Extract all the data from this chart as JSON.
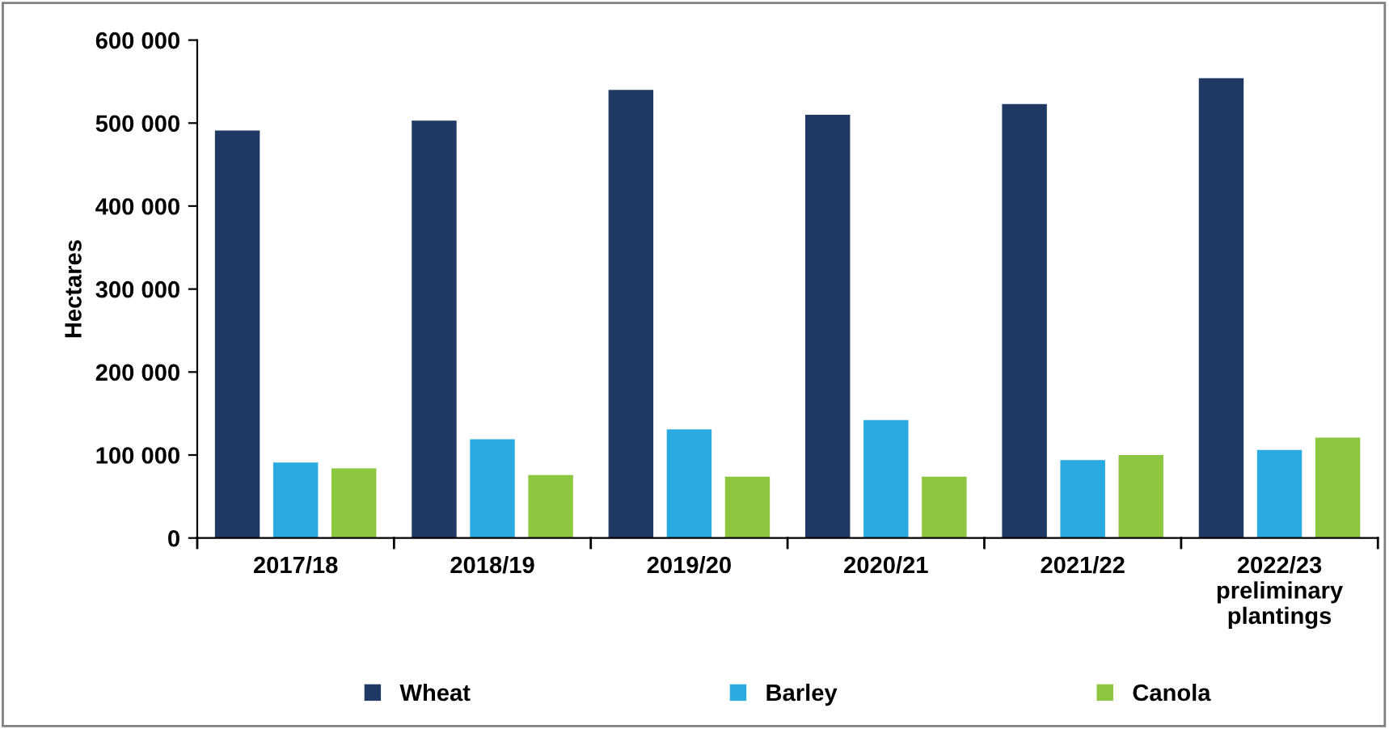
{
  "chart_data": {
    "type": "bar",
    "ylabel": "Hectares",
    "categories": [
      "2017/18",
      "2018/19",
      "2019/20",
      "2020/21",
      "2021/22",
      "2022/23\npreliminary\nplantings"
    ],
    "series": [
      {
        "name": "Wheat",
        "color": "#1f3864",
        "values": [
          491000,
          503000,
          540000,
          510000,
          523000,
          554000
        ]
      },
      {
        "name": "Barley",
        "color": "#29abe2",
        "values": [
          91000,
          119000,
          131000,
          142000,
          94000,
          106000
        ]
      },
      {
        "name": "Canola",
        "color": "#8dc63f",
        "values": [
          84000,
          76000,
          74000,
          74000,
          100000,
          121000
        ]
      }
    ],
    "ylim": [
      0,
      600000
    ],
    "yticks": [
      0,
      {
        "value": 100000,
        "label": "100 000"
      },
      {
        "value": 200000,
        "label": "200 000"
      },
      {
        "value": 300000,
        "label": "300 000"
      },
      {
        "value": 400000,
        "label": "400 000"
      },
      {
        "value": 500000,
        "label": "500 000"
      },
      {
        "value": 600000,
        "label": "600 000"
      }
    ],
    "grid": false,
    "legend": "bottom"
  }
}
